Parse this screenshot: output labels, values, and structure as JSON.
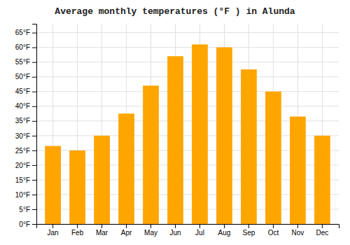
{
  "chart_data": {
    "type": "bar",
    "title": "Average monthly temperatures (°F ) in Alunda",
    "categories": [
      "Jan",
      "Feb",
      "Mar",
      "Apr",
      "May",
      "Jun",
      "Jul",
      "Aug",
      "Sep",
      "Oct",
      "Nov",
      "Dec"
    ],
    "values": [
      26.5,
      25.0,
      30.0,
      37.5,
      47.0,
      57.0,
      61.0,
      60.0,
      52.5,
      45.0,
      36.5,
      30.0
    ],
    "color": "#FFA500",
    "ylim": [
      0,
      68
    ],
    "yticks": [
      {
        "value": 0,
        "label": "0°F"
      },
      {
        "value": 5,
        "label": "5°F"
      },
      {
        "value": 10,
        "label": "10°F"
      },
      {
        "value": 15,
        "label": "15°F"
      },
      {
        "value": 20,
        "label": "20°F"
      },
      {
        "value": 25,
        "label": "25°F"
      },
      {
        "value": 30,
        "label": "30°F"
      },
      {
        "value": 35,
        "label": "35°F"
      },
      {
        "value": 40,
        "label": "40°F"
      },
      {
        "value": 45,
        "label": "45°F"
      },
      {
        "value": 50,
        "label": "50°F"
      },
      {
        "value": 55,
        "label": "55°F"
      },
      {
        "value": 60,
        "label": "60°F"
      },
      {
        "value": 65,
        "label": "65°F"
      }
    ],
    "grid": true
  }
}
